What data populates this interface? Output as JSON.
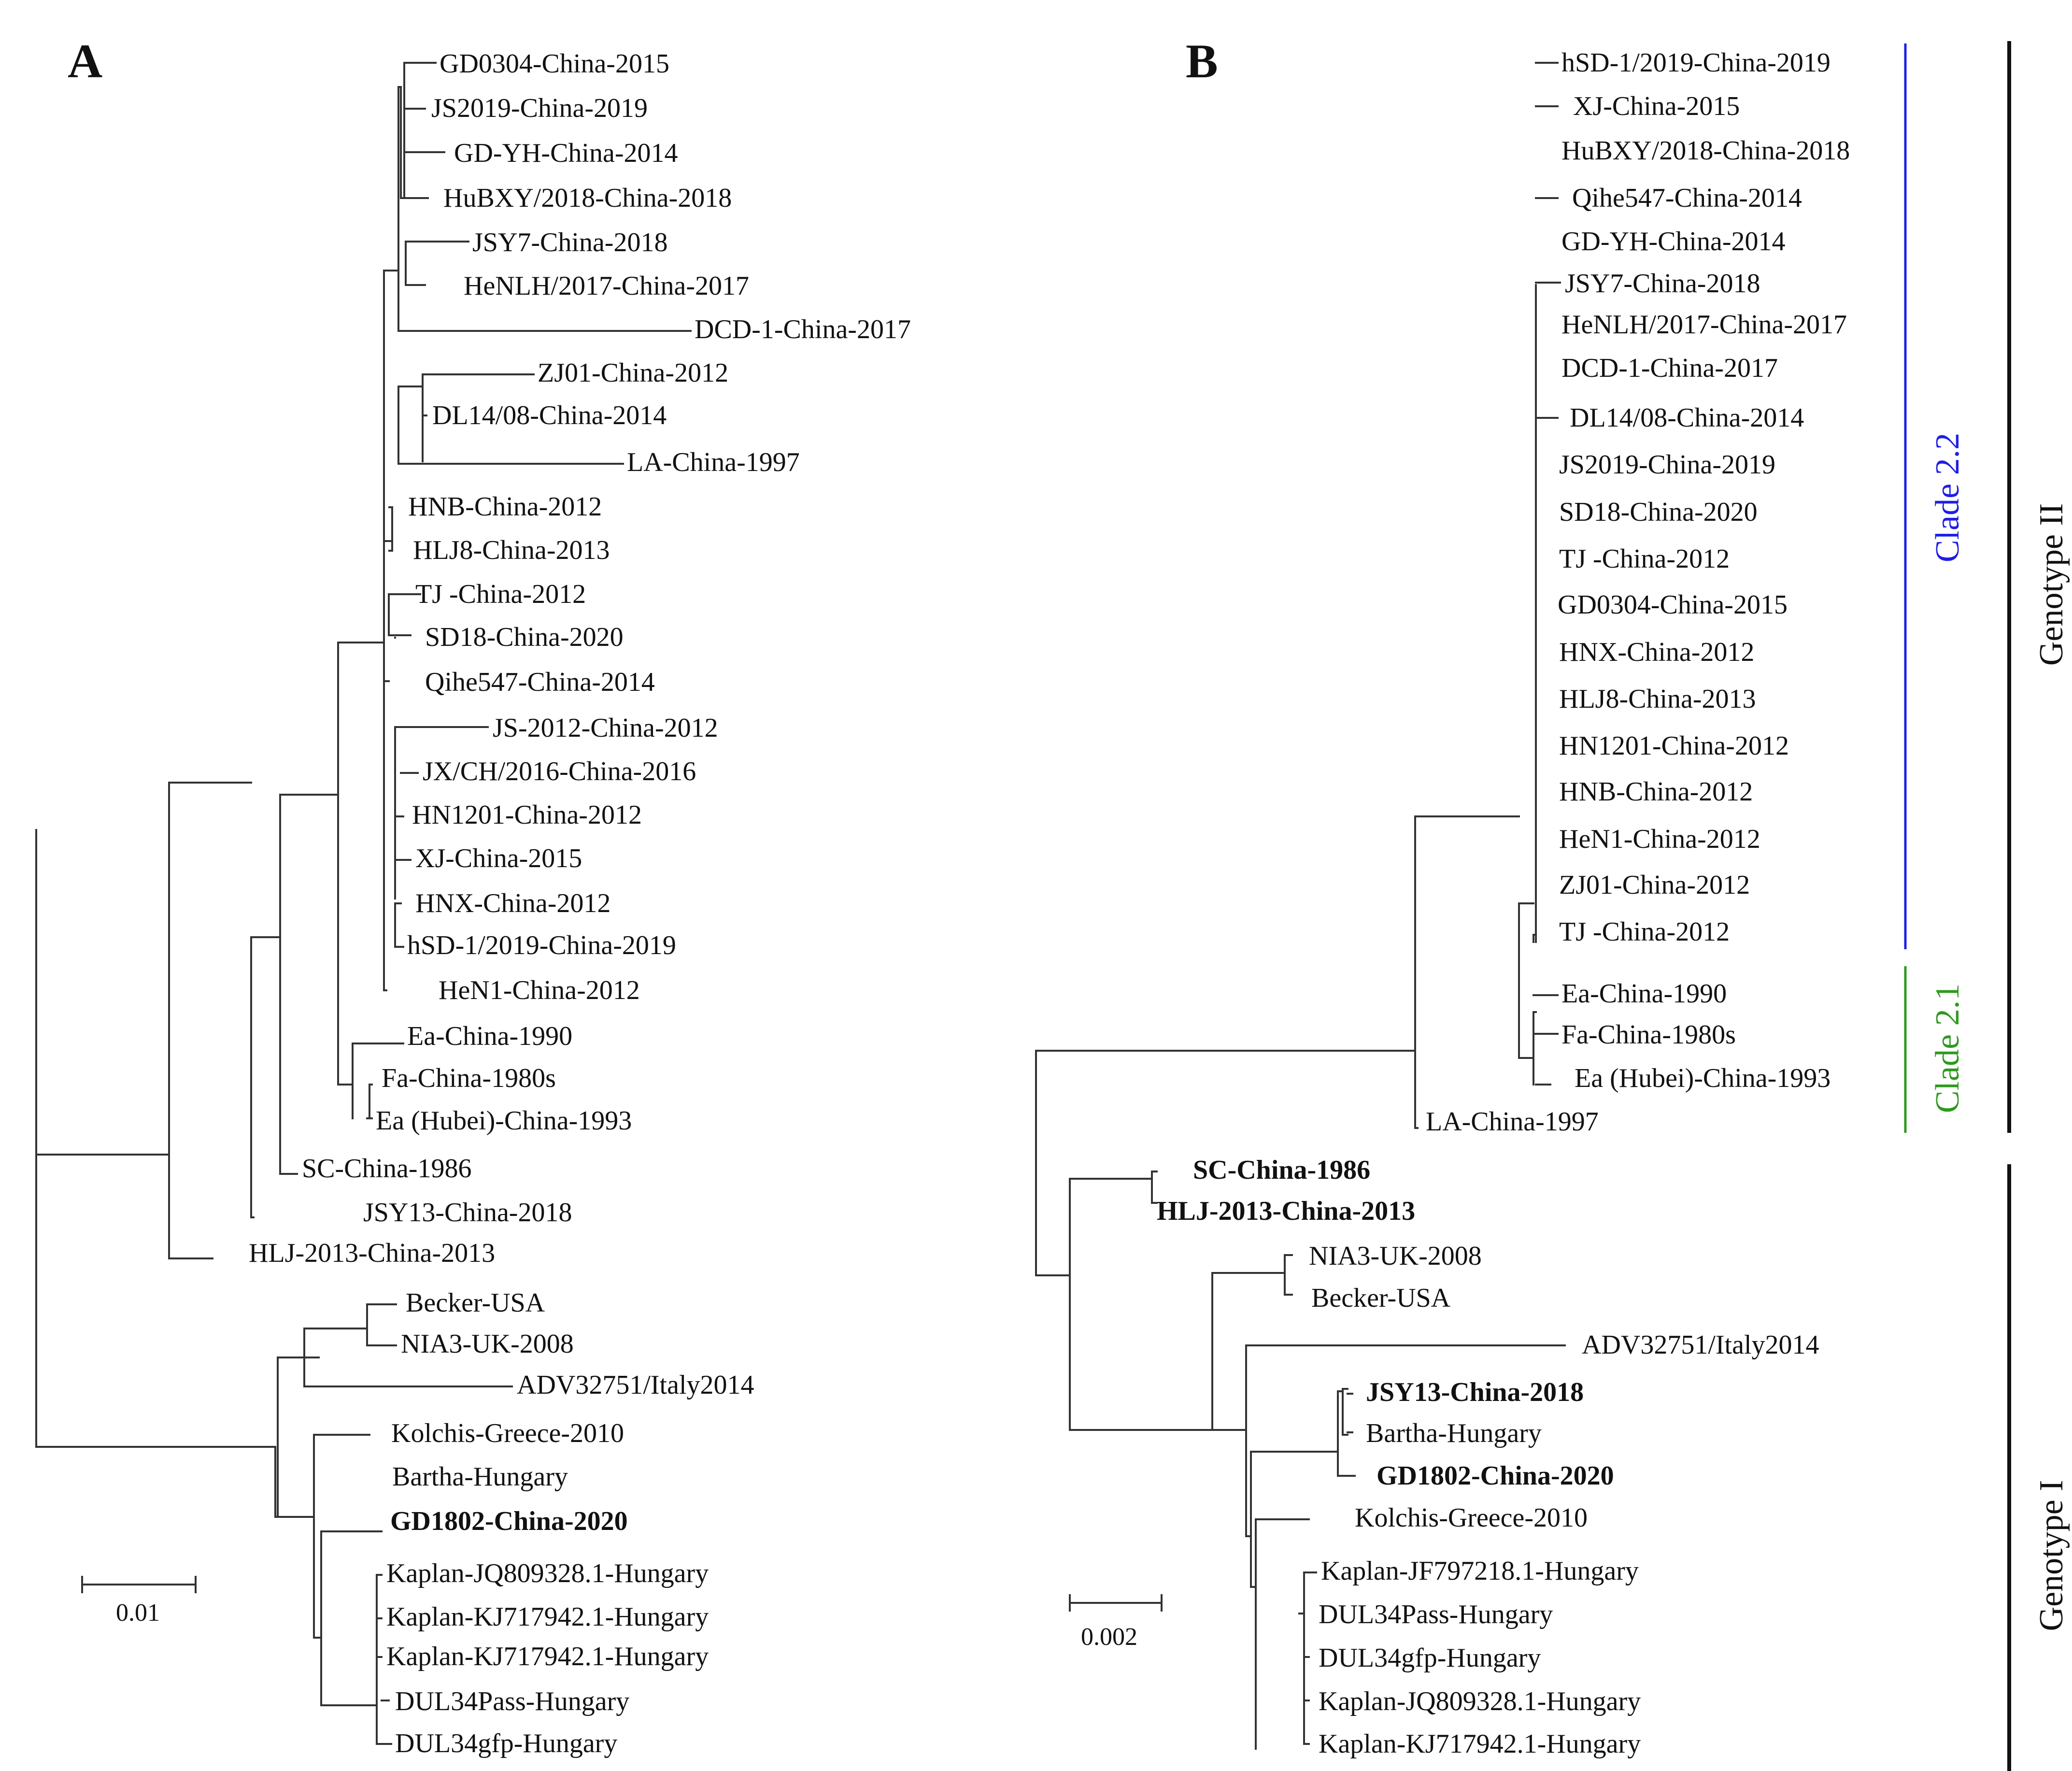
{
  "panels": {
    "a": {
      "letter": "A",
      "scale_label": "0.01",
      "taxa": [
        {
          "label": "GD0304-China-2015"
        },
        {
          "label": "JS2019-China-2019"
        },
        {
          "label": "GD-YH-China-2014"
        },
        {
          "label": "HuBXY/2018-China-2018"
        },
        {
          "label": "JSY7-China-2018"
        },
        {
          "label": "HeNLH/2017-China-2017"
        },
        {
          "label": "DCD-1-China-2017"
        },
        {
          "label": "ZJ01-China-2012"
        },
        {
          "label": "DL14/08-China-2014"
        },
        {
          "label": "LA-China-1997"
        },
        {
          "label": "HNB-China-2012"
        },
        {
          "label": "HLJ8-China-2013"
        },
        {
          "label": "TJ -China-2012"
        },
        {
          "label": "SD18-China-2020"
        },
        {
          "label": "Qihe547-China-2014"
        },
        {
          "label": "JS-2012-China-2012"
        },
        {
          "label": "JX/CH/2016-China-2016"
        },
        {
          "label": "HN1201-China-2012"
        },
        {
          "label": "XJ-China-2015"
        },
        {
          "label": "HNX-China-2012"
        },
        {
          "label": "hSD-1/2019-China-2019"
        },
        {
          "label": "HeN1-China-2012"
        },
        {
          "label": "Ea-China-1990"
        },
        {
          "label": "Fa-China-1980s"
        },
        {
          "label": "Ea (Hubei)-China-1993"
        },
        {
          "label": "SC-China-1986"
        },
        {
          "label": "JSY13-China-2018"
        },
        {
          "label": "HLJ-2013-China-2013"
        },
        {
          "label": "Becker-USA"
        },
        {
          "label": "NIA3-UK-2008"
        },
        {
          "label": "ADV32751/Italy2014"
        },
        {
          "label": "Kolchis-Greece-2010"
        },
        {
          "label": "Bartha-Hungary"
        },
        {
          "label": "GD1802-China-2020",
          "bold": true
        },
        {
          "label": "Kaplan-JQ809328.1-Hungary"
        },
        {
          "label": "Kaplan-KJ717942.1-Hungary"
        },
        {
          "label": "Kaplan-KJ717942.1-Hungary"
        },
        {
          "label": "DUL34Pass-Hungary"
        },
        {
          "label": "DUL34gfp-Hungary"
        }
      ]
    },
    "b": {
      "letter": "B",
      "scale_label": "0.002",
      "colors": {
        "clade_2_2": "#1f1fe6",
        "clade_2_1": "#2e9a1e",
        "default": "#111111"
      },
      "clade_labels": {
        "clade_2_2": "Clade 2.2",
        "clade_2_1": "Clade 2.1"
      },
      "genotype_labels": {
        "genotype_2": "Genotype II",
        "genotype_1": "Genotype I"
      },
      "taxa": [
        {
          "label": "hSD-1/2019-China-2019",
          "group": "clade_2_2"
        },
        {
          "label": "XJ-China-2015",
          "group": "clade_2_2"
        },
        {
          "label": "HuBXY/2018-China-2018",
          "group": "clade_2_2"
        },
        {
          "label": "Qihe547-China-2014",
          "group": "clade_2_2"
        },
        {
          "label": "GD-YH-China-2014",
          "group": "clade_2_2"
        },
        {
          "label": "JSY7-China-2018",
          "group": "clade_2_2"
        },
        {
          "label": "HeNLH/2017-China-2017",
          "group": "clade_2_2"
        },
        {
          "label": "DCD-1-China-2017",
          "group": "clade_2_2"
        },
        {
          "label": "DL14/08-China-2014",
          "group": "clade_2_2"
        },
        {
          "label": "JS2019-China-2019",
          "group": "clade_2_2"
        },
        {
          "label": "SD18-China-2020",
          "group": "clade_2_2"
        },
        {
          "label": "TJ -China-2012",
          "group": "clade_2_2"
        },
        {
          "label": "GD0304-China-2015",
          "group": "clade_2_2"
        },
        {
          "label": "HNX-China-2012",
          "group": "clade_2_2"
        },
        {
          "label": "HLJ8-China-2013",
          "group": "clade_2_2"
        },
        {
          "label": "HN1201-China-2012",
          "group": "clade_2_2"
        },
        {
          "label": "HNB-China-2012",
          "group": "clade_2_2"
        },
        {
          "label": "HeN1-China-2012",
          "group": "clade_2_2"
        },
        {
          "label": "ZJ01-China-2012",
          "group": "clade_2_2"
        },
        {
          "label": "TJ -China-2012",
          "group": "clade_2_2"
        },
        {
          "label": "Ea-China-1990",
          "group": "clade_2_1"
        },
        {
          "label": "Fa-China-1980s",
          "group": "clade_2_1"
        },
        {
          "label": "Ea (Hubei)-China-1993",
          "group": "clade_2_1"
        },
        {
          "label": "LA-China-1997",
          "group": "clade_2_1"
        },
        {
          "label": "SC-China-1986",
          "group": "default",
          "bold": true
        },
        {
          "label": "HLJ-2013-China-2013",
          "group": "default",
          "bold": true
        },
        {
          "label": "NIA3-UK-2008",
          "group": "default"
        },
        {
          "label": "Becker-USA",
          "group": "default"
        },
        {
          "label": "ADV32751/Italy2014",
          "group": "default"
        },
        {
          "label": "JSY13-China-2018",
          "group": "default",
          "bold": true
        },
        {
          "label": "Bartha-Hungary",
          "group": "default"
        },
        {
          "label": "GD1802-China-2020",
          "group": "default",
          "bold": true
        },
        {
          "label": "Kolchis-Greece-2010",
          "group": "default"
        },
        {
          "label": "Kaplan-JF797218.1-Hungary",
          "group": "default"
        },
        {
          "label": "DUL34Pass-Hungary",
          "group": "default"
        },
        {
          "label": "DUL34gfp-Hungary",
          "group": "default"
        },
        {
          "label": "Kaplan-JQ809328.1-Hungary",
          "group": "default"
        },
        {
          "label": "Kaplan-KJ717942.1-Hungary",
          "group": "default"
        }
      ]
    }
  }
}
